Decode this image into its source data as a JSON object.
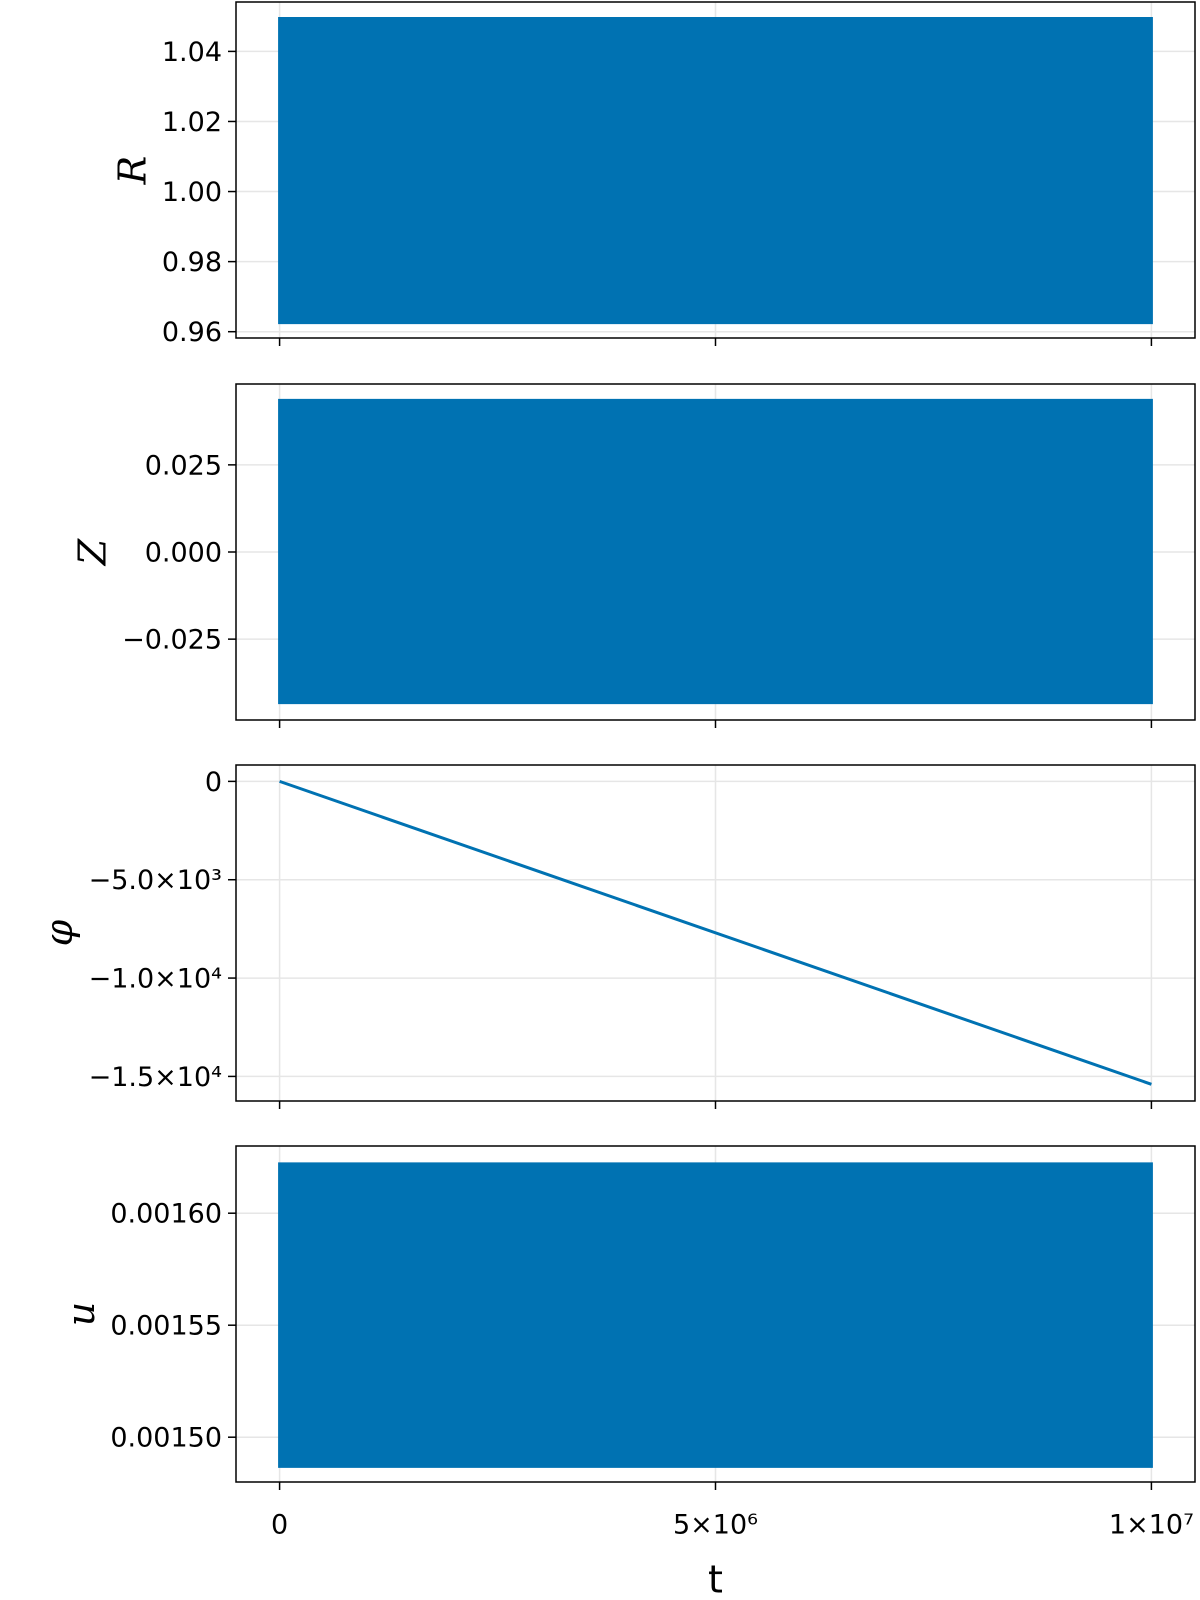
{
  "chart_data": [
    {
      "type": "band",
      "ylabel": "R",
      "color": "#0072b2",
      "x": [
        0,
        10000000
      ],
      "upper": [
        1.0494,
        1.0494
      ],
      "lower": [
        0.9626,
        0.9626
      ],
      "ylim": [
        0.9582,
        1.0541
      ],
      "yticks": [
        {
          "value": 0.96,
          "label": "0.96"
        },
        {
          "value": 0.98,
          "label": "0.98"
        },
        {
          "value": 1.0,
          "label": "1.00"
        },
        1.02,
        1.04
      ],
      "grid": true
    },
    {
      "type": "band",
      "ylabel": "Z",
      "color": "#0072b2",
      "x": [
        0,
        10000000
      ],
      "upper": [
        0.0435,
        0.0435
      ],
      "lower": [
        -0.0432,
        -0.0432
      ],
      "ylim": [
        -0.0482,
        0.0482
      ],
      "yticks": [
        {
          "value": -0.025,
          "label": "−0.025"
        },
        {
          "value": 0,
          "label": "0.000"
        },
        0.025
      ],
      "grid": true
    },
    {
      "type": "line",
      "ylabel": "φ",
      "color": "#0072b2",
      "x": [
        0,
        10000000
      ],
      "values": [
        0,
        -15400
      ],
      "ylim": [
        -16250,
        833
      ],
      "yticks": [
        {
          "value": -15000,
          "label": "−1.5×10⁴"
        },
        {
          "value": -10000,
          "label": "−1.0×10⁴"
        },
        {
          "value": -5000,
          "label": "−5.0×10³"
        },
        0
      ],
      "grid": true
    },
    {
      "type": "band",
      "ylabel": "u",
      "color": "#0072b2",
      "x": [
        0,
        10000000
      ],
      "upper": [
        0.001622,
        0.001622
      ],
      "lower": [
        0.001487,
        0.001487
      ],
      "ylim": [
        0.00148,
        0.00163
      ],
      "yticks": [
        {
          "value": 0.0015,
          "label": "0.00150"
        },
        {
          "value": 0.00155,
          "label": "0.00155"
        },
        {
          "value": 0.0016,
          "label": "0.00160"
        }
      ],
      "grid": true,
      "xlabel": "t",
      "xlim": [
        -500000,
        10500000
      ],
      "xticks": [
        0,
        {
          "value": 5000000,
          "label": "5×10⁶"
        },
        {
          "value": 10000000,
          "label": "1×10⁷"
        }
      ]
    }
  ]
}
